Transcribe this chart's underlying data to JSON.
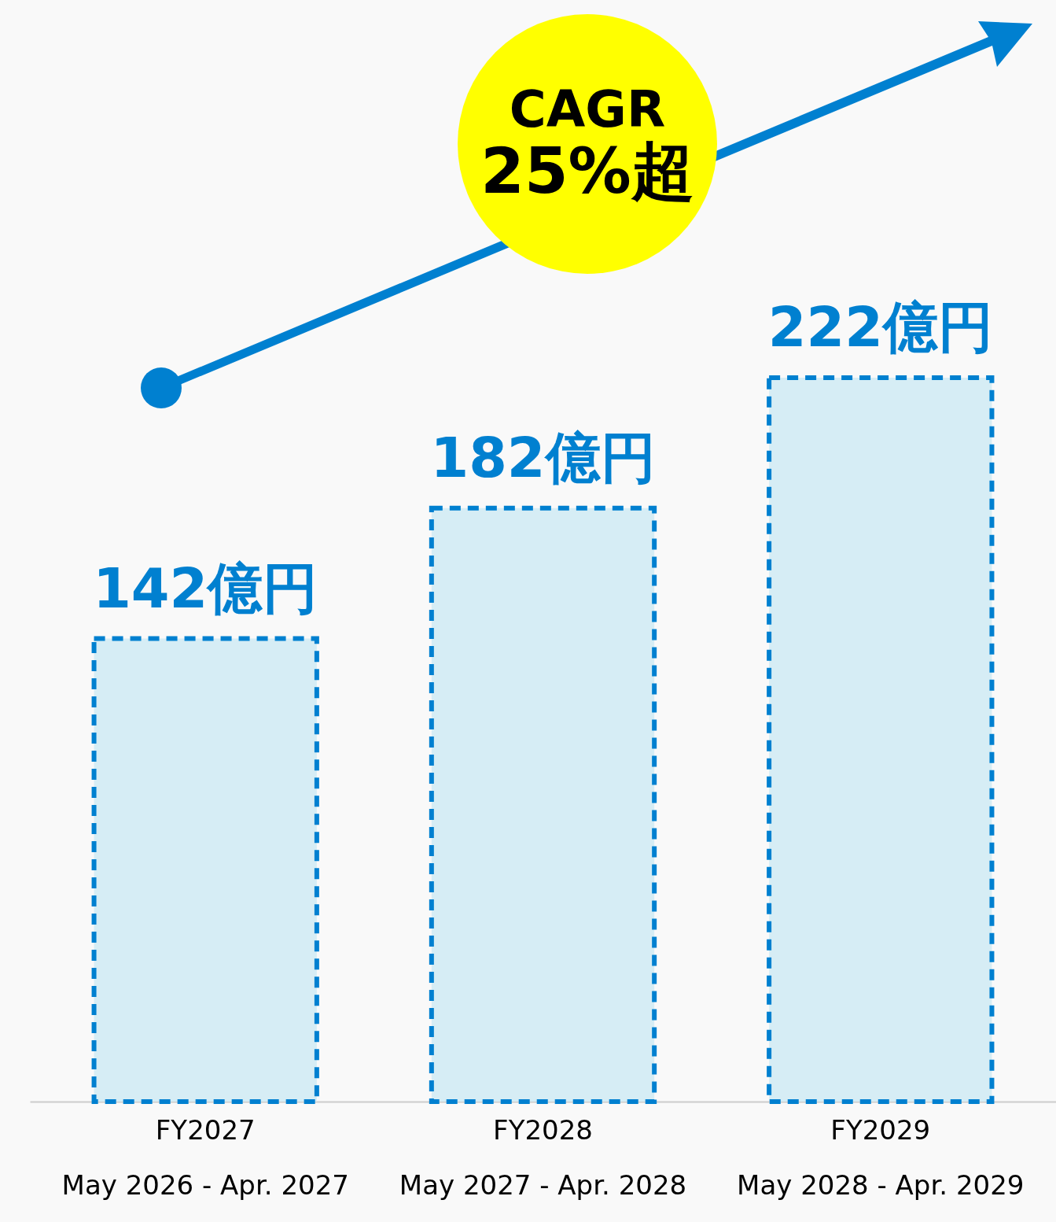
{
  "chart_data": {
    "type": "bar",
    "categories": [
      "FY2027\nMay 2026 - Apr. 2027",
      "FY2028\nMay 2027 - Apr. 2028",
      "FY2029\nMay 2028 - Apr. 2029"
    ],
    "values": [
      142,
      182,
      222
    ],
    "value_labels": [
      "142億円",
      "182億円",
      "222億円"
    ],
    "color": "#d6edf5",
    "annotations": [
      "CAGR",
      "25%超"
    ]
  }
}
